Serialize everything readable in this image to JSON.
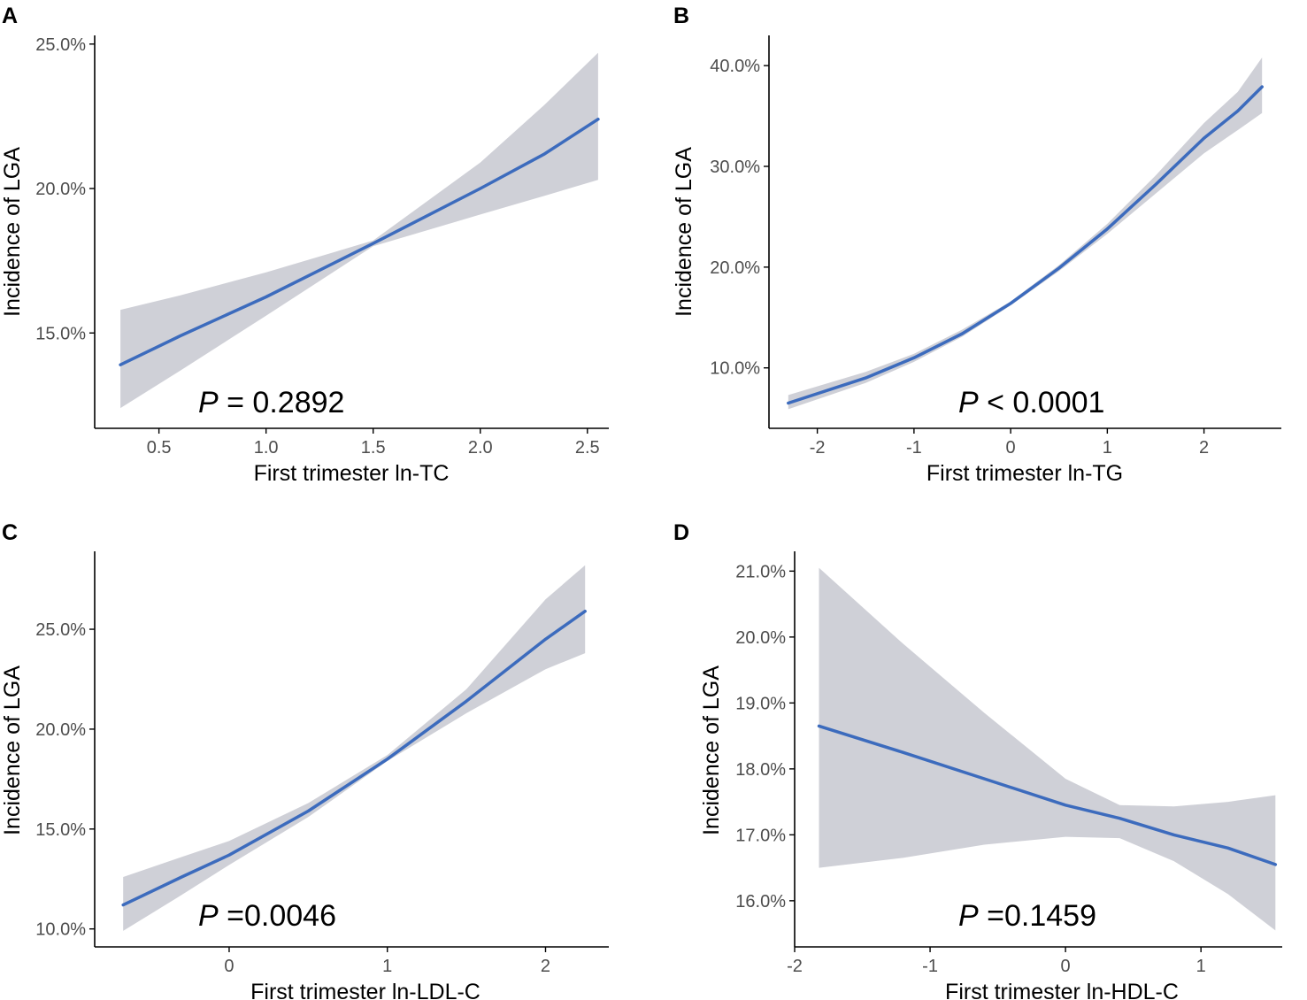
{
  "colors": {
    "line": "#3c6bbd",
    "band": "#cfd0d7",
    "axis": "#000000",
    "tick_text": "#4d4d4d"
  },
  "chart_data": [
    {
      "panel": "A",
      "type": "line",
      "xlabel": "First trimester ln-TC",
      "ylabel": "Incidence of LGA",
      "x_ticks": [
        0.5,
        1.0,
        1.5,
        2.0,
        2.5
      ],
      "x_tick_labels": [
        "0.5",
        "1.0",
        "1.5",
        "2.0",
        "2.5"
      ],
      "y_ticks": [
        15,
        20,
        25
      ],
      "y_tick_labels": [
        "15.0%",
        "20.0%",
        "25.0%"
      ],
      "xlim": [
        0.2,
        2.6
      ],
      "ylim": [
        11.7,
        25.3
      ],
      "p_label": "P",
      "p_value": " = 0.2892",
      "series": [
        {
          "name": "fit",
          "x": [
            0.32,
            0.6,
            1.0,
            1.5,
            2.0,
            2.3,
            2.55
          ],
          "y": [
            13.9,
            14.9,
            16.25,
            18.1,
            20.0,
            21.2,
            22.4
          ],
          "lower": [
            12.4,
            13.7,
            15.6,
            18.0,
            19.1,
            19.75,
            20.3
          ],
          "upper": [
            15.8,
            16.3,
            17.1,
            18.2,
            20.9,
            22.9,
            24.7
          ]
        }
      ]
    },
    {
      "panel": "B",
      "type": "line",
      "xlabel": "First trimester ln-TG",
      "ylabel": "Incidence of LGA",
      "x_ticks": [
        -2,
        -1,
        0,
        1,
        2
      ],
      "x_tick_labels": [
        "-2",
        "-1",
        "0",
        "1",
        "2"
      ],
      "y_ticks": [
        10,
        20,
        30,
        40
      ],
      "y_tick_labels": [
        "10.0%",
        "20.0%",
        "30.0%",
        "40.0%"
      ],
      "xlim": [
        -2.5,
        2.8
      ],
      "ylim": [
        4,
        43
      ],
      "p_label": "P",
      "p_value": " < 0.0001",
      "series": [
        {
          "name": "fit",
          "x": [
            -2.3,
            -1.5,
            -1.0,
            -0.5,
            0,
            0.5,
            1.0,
            1.5,
            2.0,
            2.35,
            2.6
          ],
          "y": [
            6.5,
            9.0,
            11.0,
            13.4,
            16.4,
            19.9,
            23.8,
            28.2,
            32.8,
            35.5,
            37.9
          ],
          "lower": [
            5.9,
            8.5,
            10.6,
            13.1,
            16.2,
            19.6,
            23.3,
            27.3,
            31.3,
            33.6,
            35.3
          ],
          "upper": [
            7.3,
            9.6,
            11.4,
            13.8,
            16.6,
            20.2,
            24.3,
            29.1,
            34.3,
            37.4,
            40.8
          ]
        }
      ]
    },
    {
      "panel": "C",
      "type": "line",
      "xlabel": "First trimester ln-LDL-C",
      "ylabel": "Incidence of LGA",
      "x_ticks": [
        0,
        1,
        2
      ],
      "x_tick_labels": [
        "0",
        "1",
        "2"
      ],
      "y_ticks": [
        10,
        15,
        20,
        25
      ],
      "y_tick_labels": [
        "10.0%",
        "15.0%",
        "20.0%",
        "25.0%"
      ],
      "xlim": [
        -0.85,
        2.4
      ],
      "ylim": [
        9.1,
        28.9
      ],
      "p_label": "P",
      "p_value": " =0.0046",
      "series": [
        {
          "name": "fit",
          "x": [
            -0.67,
            -0.3,
            0.0,
            0.5,
            1.0,
            1.5,
            2.0,
            2.25
          ],
          "y": [
            11.2,
            12.6,
            13.7,
            15.9,
            18.5,
            21.4,
            24.5,
            25.9
          ],
          "lower": [
            9.9,
            11.7,
            13.2,
            15.6,
            18.4,
            20.8,
            23.0,
            23.8
          ],
          "upper": [
            12.6,
            13.6,
            14.4,
            16.3,
            18.7,
            22.0,
            26.5,
            28.2
          ]
        }
      ]
    },
    {
      "panel": "D",
      "type": "line",
      "xlabel": "First trimester ln-HDL-C",
      "ylabel": "Incidence of LGA",
      "x_ticks": [
        -2,
        -1,
        0,
        1
      ],
      "x_tick_labels": [
        "-2",
        "-1",
        "0",
        "1"
      ],
      "y_ticks": [
        16,
        17,
        18,
        19,
        20,
        21
      ],
      "y_tick_labels": [
        "16.0%",
        "17.0%",
        "18.0%",
        "19.0%",
        "20.0%",
        "21.0%"
      ],
      "xlim": [
        -2.0,
        1.6
      ],
      "ylim": [
        15.3,
        21.3
      ],
      "p_label": "P",
      "p_value": " =0.1459",
      "series": [
        {
          "name": "fit",
          "x": [
            -1.82,
            -1.2,
            -0.6,
            0.0,
            0.4,
            0.8,
            1.2,
            1.55
          ],
          "y": [
            18.65,
            18.25,
            17.85,
            17.45,
            17.25,
            17.0,
            16.8,
            16.55
          ],
          "lower": [
            16.5,
            16.65,
            16.85,
            16.97,
            16.95,
            16.6,
            16.1,
            15.55
          ],
          "upper": [
            21.05,
            19.9,
            18.85,
            17.85,
            17.45,
            17.43,
            17.5,
            17.6
          ]
        }
      ]
    }
  ]
}
